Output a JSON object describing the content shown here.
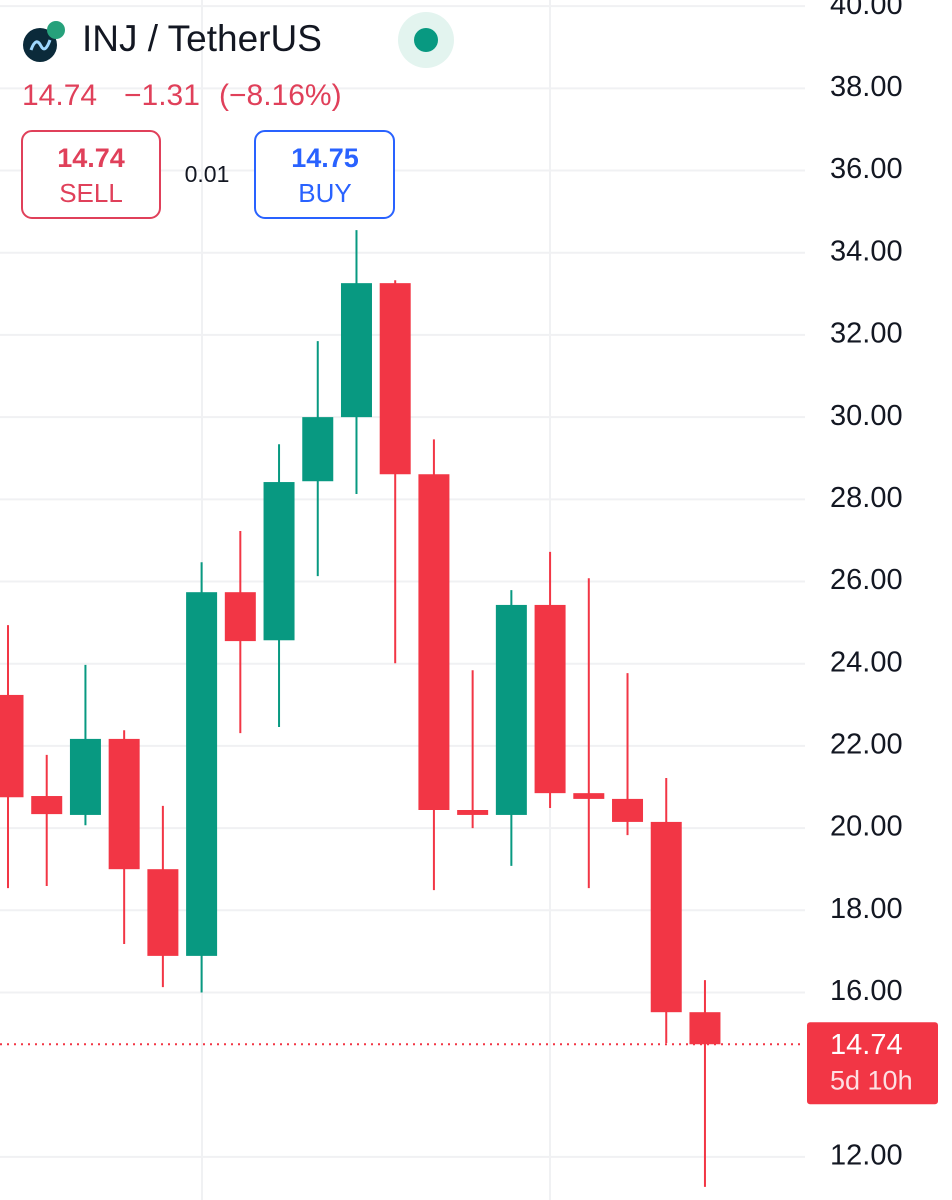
{
  "header": {
    "symbol": "INJ / TetherUS",
    "price": "14.74",
    "change": "−1.31",
    "change_percent": "(−8.16%)",
    "sell_price": "14.74",
    "sell_label": "SELL",
    "spread": "0.01",
    "buy_price": "14.75",
    "buy_label": "BUY"
  },
  "chart_data": {
    "type": "candlestick",
    "categories": [
      null,
      null,
      null,
      null,
      null,
      null,
      null,
      null,
      null,
      null,
      null,
      null,
      null,
      null,
      null,
      null,
      null,
      null,
      null
    ],
    "series": [
      {
        "name": "open",
        "values": [
          23.24,
          20.78,
          20.32,
          22.17,
          19.0,
          16.89,
          25.74,
          24.57,
          28.44,
          30.0,
          33.26,
          28.61,
          20.44,
          20.32,
          25.43,
          20.85,
          20.71,
          20.15,
          15.52
        ]
      },
      {
        "name": "high",
        "values": [
          24.94,
          21.78,
          23.97,
          22.38,
          20.54,
          26.47,
          27.23,
          29.34,
          31.85,
          34.55,
          33.33,
          29.46,
          23.84,
          25.79,
          26.72,
          26.08,
          23.77,
          21.22,
          16.3
        ]
      },
      {
        "name": "low",
        "values": [
          18.54,
          18.59,
          20.07,
          17.18,
          16.13,
          16.0,
          22.31,
          22.46,
          26.13,
          28.13,
          24.01,
          18.49,
          20.0,
          19.08,
          20.49,
          18.54,
          19.83,
          14.77,
          11.27
        ]
      },
      {
        "name": "close",
        "values": [
          20.75,
          20.34,
          22.17,
          19.0,
          16.89,
          25.74,
          24.55,
          28.42,
          30.0,
          33.26,
          28.61,
          20.44,
          20.32,
          25.43,
          20.85,
          20.71,
          20.15,
          15.52,
          14.74
        ]
      }
    ],
    "up_color": "#089981",
    "down_color": "#f23645",
    "ylim": [
      10.95,
      40.15
    ],
    "yticks": [
      {
        "value": 12,
        "label": "12.00"
      },
      {
        "value": 16,
        "label": "16.00"
      },
      {
        "value": 18,
        "label": "18.00"
      },
      {
        "value": 20,
        "label": "20.00"
      },
      {
        "value": 22,
        "label": "22.00"
      },
      {
        "value": 24,
        "label": "24.00"
      },
      {
        "value": 26,
        "label": "26.00"
      },
      {
        "value": 28,
        "label": "28.00"
      },
      {
        "value": 30,
        "label": "30.00"
      },
      {
        "value": 32,
        "label": "32.00"
      },
      {
        "value": 34,
        "label": "34.00"
      },
      {
        "value": 36,
        "label": "36.00"
      },
      {
        "value": 38,
        "label": "38.00"
      },
      {
        "value": 40,
        "label": "40.00"
      }
    ],
    "grid": true,
    "last_price": 14.74,
    "countdown": "5d 10h"
  }
}
